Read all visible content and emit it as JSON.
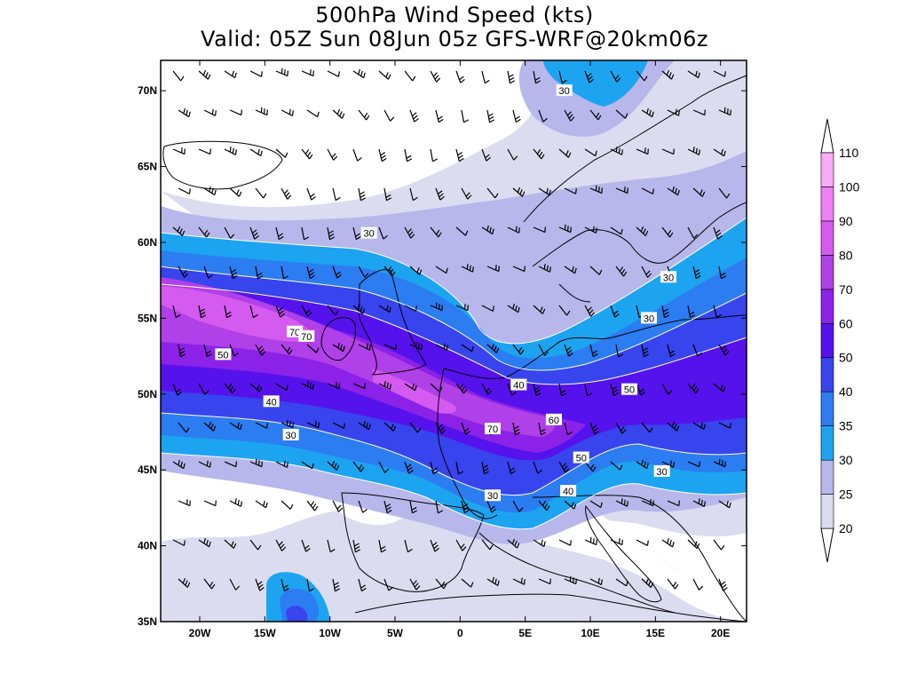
{
  "title": {
    "line1": "500hPa Wind Speed (kts)",
    "line2": "Valid: 05Z Sun 08Jun 05z GFS-WRF@20km06z"
  },
  "map": {
    "lon_range": [
      -23,
      22
    ],
    "lat_range": [
      35,
      72
    ],
    "lat_ticks": [
      {
        "value": 70,
        "label": "70N"
      },
      {
        "value": 65,
        "label": "65N"
      },
      {
        "value": 60,
        "label": "60N"
      },
      {
        "value": 55,
        "label": "55N"
      },
      {
        "value": 50,
        "label": "50N"
      },
      {
        "value": 45,
        "label": "45N"
      },
      {
        "value": 40,
        "label": "40N"
      },
      {
        "value": 35,
        "label": "35N"
      }
    ],
    "lon_ticks": [
      {
        "value": -20,
        "label": "20W"
      },
      {
        "value": -15,
        "label": "15W"
      },
      {
        "value": -10,
        "label": "10W"
      },
      {
        "value": -5,
        "label": "5W"
      },
      {
        "value": 0,
        "label": "0"
      },
      {
        "value": 5,
        "label": "5E"
      },
      {
        "value": 10,
        "label": "10E"
      },
      {
        "value": 15,
        "label": "15E"
      },
      {
        "value": 20,
        "label": "20E"
      }
    ],
    "contour_labels": [
      {
        "text": "30",
        "lon": 8,
        "lat": 70
      },
      {
        "text": "30",
        "lon": -7,
        "lat": 60.6
      },
      {
        "text": "30",
        "lon": 16,
        "lat": 57.7
      },
      {
        "text": "30",
        "lon": 14.5,
        "lat": 55
      },
      {
        "text": "70",
        "lon": -12.7,
        "lat": 54.1
      },
      {
        "text": "70",
        "lon": -11.8,
        "lat": 53.8
      },
      {
        "text": "50",
        "lon": -18.2,
        "lat": 52.6
      },
      {
        "text": "40",
        "lon": 4.5,
        "lat": 50.6
      },
      {
        "text": "50",
        "lon": 13,
        "lat": 50.3
      },
      {
        "text": "40",
        "lon": -14.5,
        "lat": 49.5
      },
      {
        "text": "60",
        "lon": 7.2,
        "lat": 48.3
      },
      {
        "text": "70",
        "lon": 2.5,
        "lat": 47.7
      },
      {
        "text": "30",
        "lon": -13,
        "lat": 47.3
      },
      {
        "text": "50",
        "lon": 9.3,
        "lat": 45.8
      },
      {
        "text": "30",
        "lon": 15.5,
        "lat": 44.9
      },
      {
        "text": "40",
        "lon": 8.3,
        "lat": 43.6
      },
      {
        "text": "30",
        "lon": 2.5,
        "lat": 43.3
      }
    ]
  },
  "colorbar": {
    "levels": [
      "20",
      "25",
      "30",
      "35",
      "40",
      "50",
      "60",
      "70",
      "80",
      "90",
      "100",
      "110"
    ],
    "colors": [
      "#dcdcf0",
      "#b7b7ec",
      "#1ca4f0",
      "#2c7cf2",
      "#3844ee",
      "#5512ec",
      "#8c22e8",
      "#b040e8",
      "#d45af0",
      "#ee80f4",
      "#f8acf8",
      "#fcd6fc"
    ]
  }
}
